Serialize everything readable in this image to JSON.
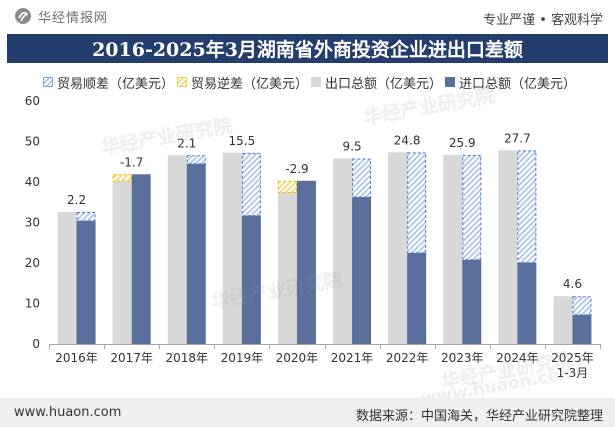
{
  "header": {
    "logo_icon": "huajing-logo-icon",
    "logo_text": "华经情报网",
    "slogan": "专业严谨 • 客观科学"
  },
  "colors": {
    "title_bar": "#233d6c",
    "title_text": "#ffffff",
    "surplus": "#4a7fcb",
    "surplus_hatch": "#9ab9e4",
    "deficit": "#f0b400",
    "deficit_hatch": "#f5cf5a",
    "export": "#d8d8d8",
    "import": "#5b6f9d",
    "axis": "#a6a6a6",
    "footer_bg": "#efefef"
  },
  "chart_data": {
    "type": "bar",
    "title": "2016-2025年3月湖南省外商投资企业进出口差额",
    "categories": [
      "2016年",
      "2017年",
      "2018年",
      "2019年",
      "2020年",
      "2021年",
      "2022年",
      "2023年",
      "2024年",
      "2025年1-3月"
    ],
    "series": [
      {
        "name": "贸易顺差（亿美元）",
        "values": [
          2.2,
          null,
          2.1,
          15.5,
          null,
          9.5,
          24.8,
          25.9,
          27.7,
          4.6
        ]
      },
      {
        "name": "贸易逆差（亿美元）",
        "values": [
          null,
          -1.7,
          null,
          null,
          -2.9,
          null,
          null,
          null,
          null,
          null
        ]
      },
      {
        "name": "出口总额（亿美元）",
        "values": [
          32.6,
          40.2,
          46.6,
          47.2,
          37.4,
          45.8,
          47.3,
          46.7,
          47.8,
          11.8
        ]
      },
      {
        "name": "进口总额（亿美元）",
        "values": [
          30.4,
          41.9,
          44.5,
          31.7,
          40.3,
          36.3,
          22.5,
          20.8,
          20.1,
          7.2
        ]
      }
    ],
    "ylim": [
      0,
      60
    ],
    "yticks": [
      0,
      10,
      20,
      30,
      40,
      50,
      60
    ],
    "grid": false,
    "legend_position": "top"
  },
  "watermark": {
    "text": "华经产业研究院",
    "url": "www.huaon.com"
  },
  "footer": {
    "website": "www.huaon.com",
    "source": "数据来源：中国海关，华经产业研究院整理"
  }
}
